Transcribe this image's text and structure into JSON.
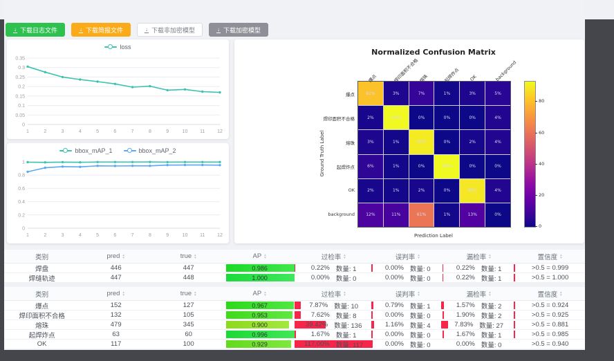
{
  "toolbar": {
    "buttons": [
      {
        "label": "下载日志文件",
        "bg": "#2ec150",
        "fg": "#ffffff",
        "border": "#2ec150"
      },
      {
        "label": "下载简报文件",
        "bg": "#fbab19",
        "fg": "#ffffff",
        "border": "#fbab19"
      },
      {
        "label": "下载非加密模型",
        "bg": "#ffffff",
        "fg": "#7b8088",
        "border": "#d9dce3"
      },
      {
        "label": "下载加密模型",
        "bg": "#8f9097",
        "fg": "#ffffff",
        "border": "#8f9097"
      }
    ]
  },
  "loss_chart": {
    "type": "line",
    "x": [
      1,
      2,
      3,
      4,
      5,
      6,
      7,
      8,
      9,
      10,
      11,
      12
    ],
    "ytick_labels": [
      "0",
      "0.05",
      "0.1",
      "0.15",
      "0.2",
      "0.25",
      "0.3",
      "0.35"
    ],
    "ymax": 0.35,
    "series": [
      {
        "name": "loss",
        "color": "#3bc3ae",
        "values": [
          0.305,
          0.276,
          0.25,
          0.237,
          0.226,
          0.214,
          0.197,
          0.202,
          0.181,
          0.185,
          0.173,
          0.169
        ]
      }
    ]
  },
  "map_chart": {
    "type": "line",
    "x": [
      1,
      2,
      3,
      4,
      5,
      6,
      7,
      8,
      9,
      10,
      11,
      12
    ],
    "ytick_labels": [
      "0",
      "0.2",
      "0.4",
      "0.6",
      "0.8",
      "1"
    ],
    "ymax": 1,
    "series": [
      {
        "name": "bbox_mAP_1",
        "color": "#3bc3ae",
        "values": [
          0.995,
          0.992,
          0.996,
          0.993,
          0.997,
          0.997,
          0.997,
          0.998,
          0.996,
          0.997,
          0.997,
          0.997
        ]
      },
      {
        "name": "bbox_mAP_2",
        "color": "#58a8f2",
        "values": [
          0.85,
          0.91,
          0.928,
          0.924,
          0.94,
          0.937,
          0.94,
          0.94,
          0.951,
          0.952,
          0.952,
          0.95
        ]
      }
    ]
  },
  "confusion": {
    "title": "Normalized Confusion Matrix",
    "xlabel": "Prediction Label",
    "ylabel": "Ground Truth Label",
    "classes": [
      "爆点",
      "焊印面积不合格",
      "熔珠",
      "起焊炸点",
      "OK",
      "background"
    ],
    "unit": "%",
    "vmax": 93,
    "colorbar_ticks": [
      0,
      20,
      40,
      60,
      80
    ],
    "matrix": [
      [
        81,
        3,
        7,
        1,
        3,
        5
      ],
      [
        2,
        93,
        0,
        0,
        0,
        4
      ],
      [
        3,
        1,
        90,
        0,
        2,
        4
      ],
      [
        6,
        1,
        0,
        93,
        0,
        0
      ],
      [
        2,
        1,
        2,
        0,
        89,
        4
      ],
      [
        12,
        11,
        61,
        1,
        13,
        0
      ]
    ]
  },
  "tables": {
    "headers": [
      {
        "label": "类别",
        "sortable": false
      },
      {
        "label": "pred",
        "sortable": true
      },
      {
        "label": "true",
        "sortable": true
      },
      {
        "label": "AP",
        "sortable": true
      },
      {
        "label": "过检率",
        "sortable": true
      },
      {
        "label": "误判率",
        "sortable": true
      },
      {
        "label": "漏检率",
        "sortable": true
      },
      {
        "label": "置信度",
        "sortable": true
      }
    ],
    "count_label": "数量",
    "groups": [
      {
        "rows": [
          {
            "name": "焊盘",
            "pred": 446,
            "true": 447,
            "ap": 0.986,
            "over": {
              "pct": 0.22,
              "count": 1
            },
            "mis": {
              "pct": 0.0,
              "count": 0
            },
            "miss": {
              "pct": 0.22,
              "count": 1
            },
            "conf": ">0.5 = 0.999"
          },
          {
            "name": "焊缝轨迹",
            "pred": 447,
            "true": 448,
            "ap": 1.0,
            "over": {
              "pct": 0.0,
              "count": 0
            },
            "mis": {
              "pct": 0.0,
              "count": 0
            },
            "miss": {
              "pct": 0.22,
              "count": 1
            },
            "conf": ">0.5 = 1.000"
          }
        ]
      },
      {
        "rows": [
          {
            "name": "爆点",
            "pred": 152,
            "true": 127,
            "ap": 0.967,
            "over": {
              "pct": 7.87,
              "count": 10
            },
            "mis": {
              "pct": 0.79,
              "count": 1
            },
            "miss": {
              "pct": 1.57,
              "count": 2
            },
            "conf": ">0.5 = 0.924"
          },
          {
            "name": "焊印面积不合格",
            "pred": 132,
            "true": 105,
            "ap": 0.953,
            "over": {
              "pct": 7.62,
              "count": 8
            },
            "mis": {
              "pct": 0.0,
              "count": 0
            },
            "miss": {
              "pct": 1.9,
              "count": 2
            },
            "conf": ">0.5 = 0.925"
          },
          {
            "name": "熔珠",
            "pred": 479,
            "true": 345,
            "ap": 0.9,
            "over": {
              "pct": 39.42,
              "count": 136
            },
            "mis": {
              "pct": 1.16,
              "count": 4
            },
            "miss": {
              "pct": 7.83,
              "count": 27
            },
            "conf": ">0.5 = 0.881"
          },
          {
            "name": "起焊炸点",
            "pred": 63,
            "true": 60,
            "ap": 0.996,
            "over": {
              "pct": 1.67,
              "count": 1
            },
            "mis": {
              "pct": 0.0,
              "count": 0
            },
            "miss": {
              "pct": 1.67,
              "count": 1
            },
            "conf": ">0.5 = 0.985"
          },
          {
            "name": "OK",
            "pred": 117,
            "true": 100,
            "ap": 0.929,
            "over": {
              "pct": 117.0,
              "count": 117
            },
            "mis": {
              "pct": 0.0,
              "count": 0
            },
            "miss": {
              "pct": 0.0,
              "count": 0
            },
            "conf": ">0.5 = 0.940"
          }
        ]
      }
    ]
  },
  "colors": {
    "rate_bar_red": "#f8254b",
    "series_teal": "#3bc3ae",
    "series_blue": "#58a8f2"
  }
}
